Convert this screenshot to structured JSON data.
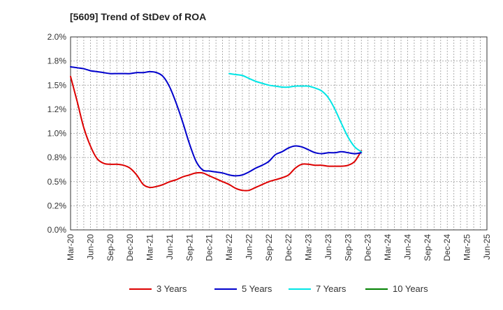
{
  "chart_data": {
    "type": "line",
    "title": "[5609]  Trend of StDev of ROA",
    "xlabel": "",
    "ylabel": "",
    "ylim": [
      0,
      2.0
    ],
    "y_ticks": [
      "0.0%",
      "0.2%",
      "0.5%",
      "0.8%",
      "1.0%",
      "1.2%",
      "1.5%",
      "1.8%",
      "2.0%"
    ],
    "x_ticks": [
      "Mar-20",
      "Jun-20",
      "Sep-20",
      "Dec-20",
      "Mar-21",
      "Jun-21",
      "Sep-21",
      "Dec-21",
      "Mar-22",
      "Jun-22",
      "Sep-22",
      "Dec-22",
      "Mar-23",
      "Jun-23",
      "Sep-23",
      "Dec-23",
      "Mar-24",
      "Jun-24",
      "Sep-24",
      "Dec-24",
      "Mar-25",
      "Jun-25"
    ],
    "grid": true,
    "legend_position": "bottom",
    "series": [
      {
        "name": "3 Years",
        "color": "#dd0000",
        "values": [
          [
            0,
            1.59
          ],
          [
            1,
            1.33
          ],
          [
            2,
            1.06
          ],
          [
            3,
            0.87
          ],
          [
            4,
            0.74
          ],
          [
            5,
            0.69
          ],
          [
            6,
            0.68
          ],
          [
            7,
            0.68
          ],
          [
            8,
            0.67
          ],
          [
            9,
            0.64
          ],
          [
            10,
            0.57
          ],
          [
            11,
            0.47
          ],
          [
            12,
            0.44
          ],
          [
            13,
            0.45
          ],
          [
            14,
            0.47
          ],
          [
            15,
            0.5
          ],
          [
            16,
            0.52
          ],
          [
            17,
            0.55
          ],
          [
            18,
            0.57
          ],
          [
            19,
            0.59
          ],
          [
            20,
            0.59
          ],
          [
            21,
            0.56
          ],
          [
            22,
            0.53
          ],
          [
            23,
            0.5
          ],
          [
            24,
            0.47
          ],
          [
            25,
            0.43
          ],
          [
            26,
            0.41
          ],
          [
            27,
            0.41
          ],
          [
            28,
            0.44
          ],
          [
            29,
            0.47
          ],
          [
            30,
            0.5
          ],
          [
            31,
            0.52
          ],
          [
            32,
            0.54
          ],
          [
            33,
            0.57
          ],
          [
            34,
            0.64
          ],
          [
            35,
            0.68
          ],
          [
            36,
            0.68
          ],
          [
            37,
            0.67
          ],
          [
            38,
            0.67
          ],
          [
            39,
            0.66
          ],
          [
            40,
            0.66
          ],
          [
            41,
            0.66
          ],
          [
            42,
            0.67
          ],
          [
            43,
            0.71
          ],
          [
            44,
            0.82
          ]
        ]
      },
      {
        "name": "5 Years",
        "color": "#0000cc",
        "values": [
          [
            0,
            1.69
          ],
          [
            1,
            1.68
          ],
          [
            2,
            1.67
          ],
          [
            3,
            1.65
          ],
          [
            4,
            1.64
          ],
          [
            5,
            1.63
          ],
          [
            6,
            1.62
          ],
          [
            7,
            1.62
          ],
          [
            8,
            1.62
          ],
          [
            9,
            1.62
          ],
          [
            10,
            1.63
          ],
          [
            11,
            1.63
          ],
          [
            12,
            1.64
          ],
          [
            13,
            1.63
          ],
          [
            14,
            1.59
          ],
          [
            15,
            1.48
          ],
          [
            16,
            1.31
          ],
          [
            17,
            1.11
          ],
          [
            18,
            0.89
          ],
          [
            19,
            0.71
          ],
          [
            20,
            0.62
          ],
          [
            21,
            0.61
          ],
          [
            22,
            0.6
          ],
          [
            23,
            0.59
          ],
          [
            24,
            0.57
          ],
          [
            25,
            0.56
          ],
          [
            26,
            0.57
          ],
          [
            27,
            0.6
          ],
          [
            28,
            0.64
          ],
          [
            29,
            0.67
          ],
          [
            30,
            0.71
          ],
          [
            31,
            0.78
          ],
          [
            32,
            0.81
          ],
          [
            33,
            0.85
          ],
          [
            34,
            0.87
          ],
          [
            35,
            0.86
          ],
          [
            36,
            0.83
          ],
          [
            37,
            0.8
          ],
          [
            38,
            0.79
          ],
          [
            39,
            0.8
          ],
          [
            40,
            0.8
          ],
          [
            41,
            0.81
          ],
          [
            42,
            0.8
          ],
          [
            43,
            0.79
          ],
          [
            44,
            0.8
          ]
        ]
      },
      {
        "name": "7 Years",
        "color": "#00e5e5",
        "values": [
          [
            24,
            1.62
          ],
          [
            25,
            1.61
          ],
          [
            26,
            1.6
          ],
          [
            27,
            1.57
          ],
          [
            28,
            1.54
          ],
          [
            29,
            1.52
          ],
          [
            30,
            1.5
          ],
          [
            31,
            1.49
          ],
          [
            32,
            1.48
          ],
          [
            33,
            1.48
          ],
          [
            34,
            1.49
          ],
          [
            35,
            1.49
          ],
          [
            36,
            1.49
          ],
          [
            37,
            1.47
          ],
          [
            38,
            1.44
          ],
          [
            39,
            1.37
          ],
          [
            40,
            1.25
          ],
          [
            41,
            1.1
          ],
          [
            42,
            0.96
          ],
          [
            43,
            0.86
          ],
          [
            44,
            0.81
          ]
        ]
      },
      {
        "name": "10 Years",
        "color": "#008000",
        "values": []
      }
    ]
  }
}
